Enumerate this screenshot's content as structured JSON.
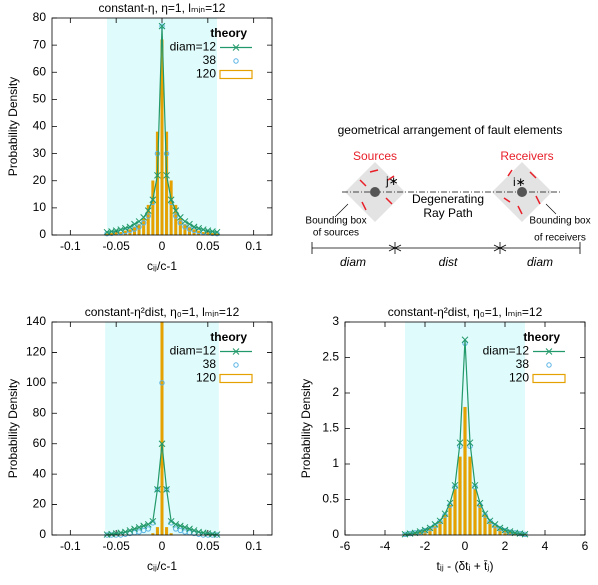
{
  "chart_data": [
    {
      "type": "line",
      "title": "constant-η, η=1, lₘᵢₙ=12",
      "xlabel": "cᵢⱼ/c-1",
      "ylabel": "Probability Density",
      "xlim": [
        -0.12,
        0.12
      ],
      "xticks": [
        -0.1,
        -0.05,
        0,
        0.05,
        0.1
      ],
      "ylim": [
        0,
        80
      ],
      "yticks": [
        0,
        10,
        20,
        30,
        40,
        50,
        60,
        70,
        80
      ],
      "shade": [
        -0.06,
        0.06
      ],
      "shade_color": "#e0fbfb",
      "legend": "top-right",
      "legend_title": "theory",
      "x": [
        -0.06,
        -0.055,
        -0.05,
        -0.045,
        -0.04,
        -0.035,
        -0.03,
        -0.025,
        -0.02,
        -0.015,
        -0.01,
        -0.005,
        0,
        0.005,
        0.01,
        0.015,
        0.02,
        0.025,
        0.03,
        0.035,
        0.04,
        0.045,
        0.05,
        0.055,
        0.06
      ],
      "series": [
        {
          "name": "diam=12",
          "style": "line",
          "color": "#22996a",
          "values": [
            1,
            1.3,
            1.6,
            2,
            2.5,
            3,
            4,
            5,
            6.5,
            9,
            13,
            22,
            77,
            22,
            13,
            9,
            6.5,
            5,
            4,
            3,
            2.5,
            2,
            1.6,
            1.3,
            1
          ]
        },
        {
          "name": "38",
          "style": "points",
          "color": "#5ab4e5",
          "values": [
            0.5,
            0.6,
            0.8,
            1,
            1.3,
            1.7,
            2.2,
            3,
            4.5,
            7,
            12,
            30,
            77,
            30,
            12,
            7,
            4.5,
            3,
            2.2,
            1.7,
            1.3,
            1,
            0.8,
            0.6,
            0.5
          ]
        },
        {
          "name": "120",
          "style": "bar",
          "color": "#e5a100",
          "values": [
            0.4,
            0.6,
            0.8,
            1,
            1.5,
            2,
            3,
            4,
            6,
            11,
            20,
            38,
            72,
            38,
            20,
            11,
            6,
            4,
            3,
            2,
            1.5,
            1,
            0.8,
            0.6,
            0.4
          ]
        }
      ]
    },
    {
      "type": "line",
      "title": "constant-η²dist, η₀=1, lₘᵢₙ=12",
      "xlabel": "cᵢⱼ/c-1",
      "ylabel": "Probability Density",
      "xlim": [
        -0.12,
        0.12
      ],
      "xticks": [
        -0.1,
        -0.05,
        0,
        0.05,
        0.1
      ],
      "ylim": [
        0,
        140
      ],
      "yticks": [
        0,
        20,
        40,
        60,
        80,
        100,
        120,
        140
      ],
      "shade": [
        -0.062,
        0.062
      ],
      "shade_color": "#e0fbfb",
      "legend": "top-right",
      "legend_title": "theory",
      "x": [
        -0.06,
        -0.055,
        -0.05,
        -0.045,
        -0.04,
        -0.035,
        -0.03,
        -0.025,
        -0.02,
        -0.015,
        -0.01,
        -0.005,
        0,
        0.005,
        0.01,
        0.015,
        0.02,
        0.025,
        0.03,
        0.035,
        0.04,
        0.045,
        0.05,
        0.055,
        0.06
      ],
      "series": [
        {
          "name": "diam=12",
          "style": "line",
          "color": "#22996a",
          "values": [
            0.3,
            0.6,
            1,
            1.5,
            2,
            3,
            4,
            5,
            6,
            7,
            9,
            30,
            60,
            30,
            9,
            7,
            6,
            5,
            4,
            3,
            2,
            1.5,
            1,
            0.6,
            0.3
          ]
        },
        {
          "name": "38",
          "style": "points",
          "color": "#5ab4e5",
          "values": [
            0,
            0,
            0,
            0,
            0.5,
            1,
            1.5,
            2,
            3,
            4,
            8,
            30,
            100,
            30,
            8,
            4,
            3,
            2,
            1.5,
            1,
            0.5,
            0,
            0,
            0,
            0
          ]
        },
        {
          "name": "120",
          "style": "bar",
          "color": "#e5a100",
          "values": [
            0,
            0,
            0,
            0,
            0,
            0,
            0,
            0,
            0,
            0,
            1,
            5,
            140,
            5,
            1,
            0,
            0,
            0,
            0,
            0,
            0,
            0,
            0,
            0,
            0
          ]
        }
      ]
    },
    {
      "type": "line",
      "title": "constant-η²dist, η₀=1, lₘᵢₙ=12",
      "xlabel": "tᵢⱼ - (δtᵢ + t̄ⱼ)",
      "ylabel": "Probability Density",
      "xlim": [
        -6,
        6
      ],
      "xticks": [
        -6,
        -4,
        -2,
        0,
        2,
        4,
        6
      ],
      "ylim": [
        0,
        3
      ],
      "yticks": [
        0,
        0.5,
        1,
        1.5,
        2,
        2.5,
        3
      ],
      "shade": [
        -3,
        3
      ],
      "shade_color": "#e0fbfb",
      "legend": "top-right",
      "legend_title": "theory",
      "x": [
        -3,
        -2.75,
        -2.5,
        -2.25,
        -2,
        -1.75,
        -1.5,
        -1.25,
        -1,
        -0.75,
        -0.5,
        -0.25,
        0,
        0.25,
        0.5,
        0.75,
        1,
        1.25,
        1.5,
        1.75,
        2,
        2.25,
        2.5,
        2.75,
        3
      ],
      "series": [
        {
          "name": "diam=12",
          "style": "line",
          "color": "#22996a",
          "values": [
            0.01,
            0.02,
            0.03,
            0.05,
            0.07,
            0.1,
            0.15,
            0.2,
            0.3,
            0.45,
            0.7,
            1.3,
            2.75,
            1.3,
            0.7,
            0.45,
            0.3,
            0.2,
            0.15,
            0.1,
            0.07,
            0.05,
            0.03,
            0.02,
            0.01
          ]
        },
        {
          "name": "38",
          "style": "points",
          "color": "#5ab4e5",
          "values": [
            0.01,
            0.02,
            0.03,
            0.04,
            0.06,
            0.09,
            0.13,
            0.19,
            0.28,
            0.42,
            0.68,
            1.25,
            2.7,
            1.25,
            0.68,
            0.42,
            0.28,
            0.19,
            0.13,
            0.09,
            0.06,
            0.04,
            0.03,
            0.02,
            0.01
          ]
        },
        {
          "name": "120",
          "style": "bar",
          "color": "#e5a100",
          "values": [
            0.01,
            0.02,
            0.03,
            0.04,
            0.06,
            0.08,
            0.12,
            0.18,
            0.28,
            0.42,
            0.65,
            1.1,
            1.8,
            1.1,
            0.65,
            0.42,
            0.28,
            0.18,
            0.12,
            0.08,
            0.06,
            0.04,
            0.03,
            0.02,
            0.01
          ]
        }
      ]
    }
  ],
  "diagram": {
    "title": "geometrical arrangement of fault elements",
    "sources": "Sources",
    "receivers": "Receivers",
    "source_element": "j∗",
    "receiver_element": "i∗",
    "ray_path": [
      "Degenerating",
      "Ray Path"
    ],
    "source_box": [
      "Bounding box",
      "of sources"
    ],
    "receiver_box": [
      "Bounding box",
      "of receivers"
    ],
    "distances": [
      "diam",
      "dist",
      "diam"
    ]
  }
}
